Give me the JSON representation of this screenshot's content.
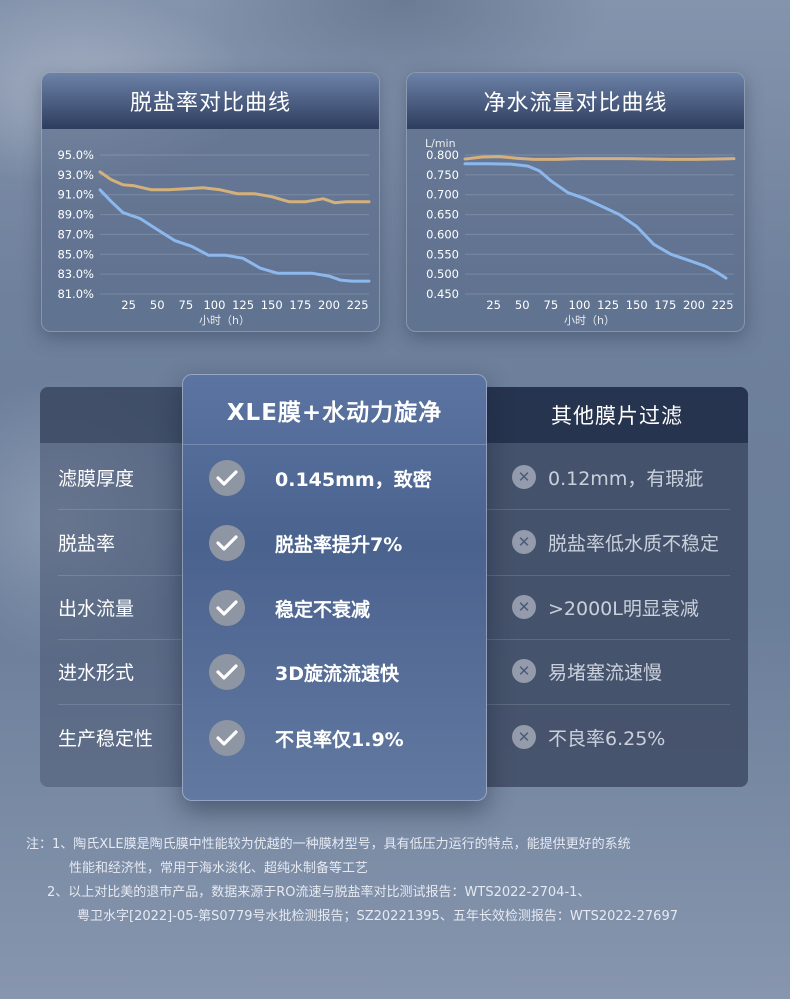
{
  "chart_data": [
    {
      "type": "line",
      "title": "脱盐率对比曲线",
      "xlabel": "小时（h）",
      "ylabel": "",
      "x_ticks": [
        "25",
        "50",
        "75",
        "100",
        "125",
        "150",
        "175",
        "200",
        "225"
      ],
      "y_ticks": [
        "95.0%",
        "93.0%",
        "91.0%",
        "89.0%",
        "87.0%",
        "85.0%",
        "83.0%",
        "81.0%"
      ],
      "xlim": [
        0,
        235
      ],
      "ylim": [
        81,
        95
      ],
      "grid": true,
      "series": [
        {
          "color": "#d4b07a",
          "x": [
            0,
            10,
            20,
            30,
            45,
            60,
            75,
            90,
            105,
            120,
            135,
            150,
            165,
            180,
            195,
            205,
            215,
            225,
            235
          ],
          "y": [
            93.3,
            92.5,
            92.0,
            91.9,
            91.5,
            91.5,
            91.6,
            91.7,
            91.5,
            91.1,
            91.1,
            90.8,
            90.3,
            90.3,
            90.6,
            90.2,
            90.3,
            90.3,
            90.3
          ]
        },
        {
          "color": "#8cb8ee",
          "x": [
            0,
            10,
            20,
            35,
            50,
            65,
            80,
            95,
            110,
            125,
            140,
            155,
            170,
            185,
            200,
            210,
            220,
            235
          ],
          "y": [
            91.5,
            90.3,
            89.2,
            88.6,
            87.5,
            86.4,
            85.8,
            84.9,
            84.9,
            84.6,
            83.6,
            83.1,
            83.1,
            83.1,
            82.8,
            82.4,
            82.3,
            82.3
          ]
        }
      ]
    },
    {
      "type": "line",
      "title": "净水流量对比曲线",
      "xlabel": "小时（h）",
      "ylabel": "L/min",
      "x_ticks": [
        "25",
        "50",
        "75",
        "100",
        "125",
        "150",
        "175",
        "200",
        "225"
      ],
      "y_ticks": [
        "0.800",
        "0.750",
        "0.700",
        "0.650",
        "0.600",
        "0.550",
        "0.500",
        "0.450"
      ],
      "xlim": [
        0,
        235
      ],
      "ylim": [
        0.45,
        0.8
      ],
      "grid": true,
      "series": [
        {
          "color": "#d4b07a",
          "x": [
            0,
            15,
            30,
            45,
            60,
            80,
            100,
            120,
            140,
            160,
            180,
            200,
            220,
            235
          ],
          "y": [
            0.79,
            0.795,
            0.796,
            0.792,
            0.789,
            0.789,
            0.791,
            0.791,
            0.791,
            0.79,
            0.789,
            0.789,
            0.79,
            0.791
          ]
        },
        {
          "color": "#8cb8ee",
          "x": [
            0,
            20,
            40,
            55,
            65,
            75,
            90,
            105,
            120,
            135,
            150,
            165,
            180,
            195,
            210,
            220,
            228
          ],
          "y": [
            0.778,
            0.778,
            0.777,
            0.772,
            0.76,
            0.735,
            0.705,
            0.69,
            0.67,
            0.65,
            0.62,
            0.575,
            0.55,
            0.535,
            0.52,
            0.505,
            0.49
          ]
        }
      ]
    }
  ],
  "comparison": {
    "xle_title": "XLE膜+水动力旋净",
    "other_title": "其他膜片过滤",
    "rows": [
      {
        "label": "滤膜厚度",
        "xle": "0.145mm，致密",
        "other": "0.12mm，有瑕疵"
      },
      {
        "label": "脱盐率",
        "xle": "脱盐率提升7%",
        "other": "脱盐率低水质不稳定"
      },
      {
        "label": "出水流量",
        "xle": "稳定不衰减",
        "other": ">2000L明显衰减"
      },
      {
        "label": "进水形式",
        "xle": "3D旋流流速快",
        "other": "易堵塞流速慢"
      },
      {
        "label": "生产稳定性",
        "xle": "不良率仅1.9%",
        "other": "不良率6.25%"
      }
    ]
  },
  "footnote": {
    "line1": "注：1、陶氏XLE膜是陶氏膜中性能较为优越的一种膜材型号，具有低压力运行的特点，能提供更好的系统",
    "line2": "性能和经济性，常用于海水淡化、超纯水制备等工艺",
    "line3": "2、以上对比美的退市产品，数据来源于RO流速与脱盐率对比测试报告：WTS2022-2704-1、",
    "line4": "粤卫水字[2022]-05-第S0779号水批检测报告；SZ20221395、五年长效检测报告：WTS2022-27697"
  }
}
